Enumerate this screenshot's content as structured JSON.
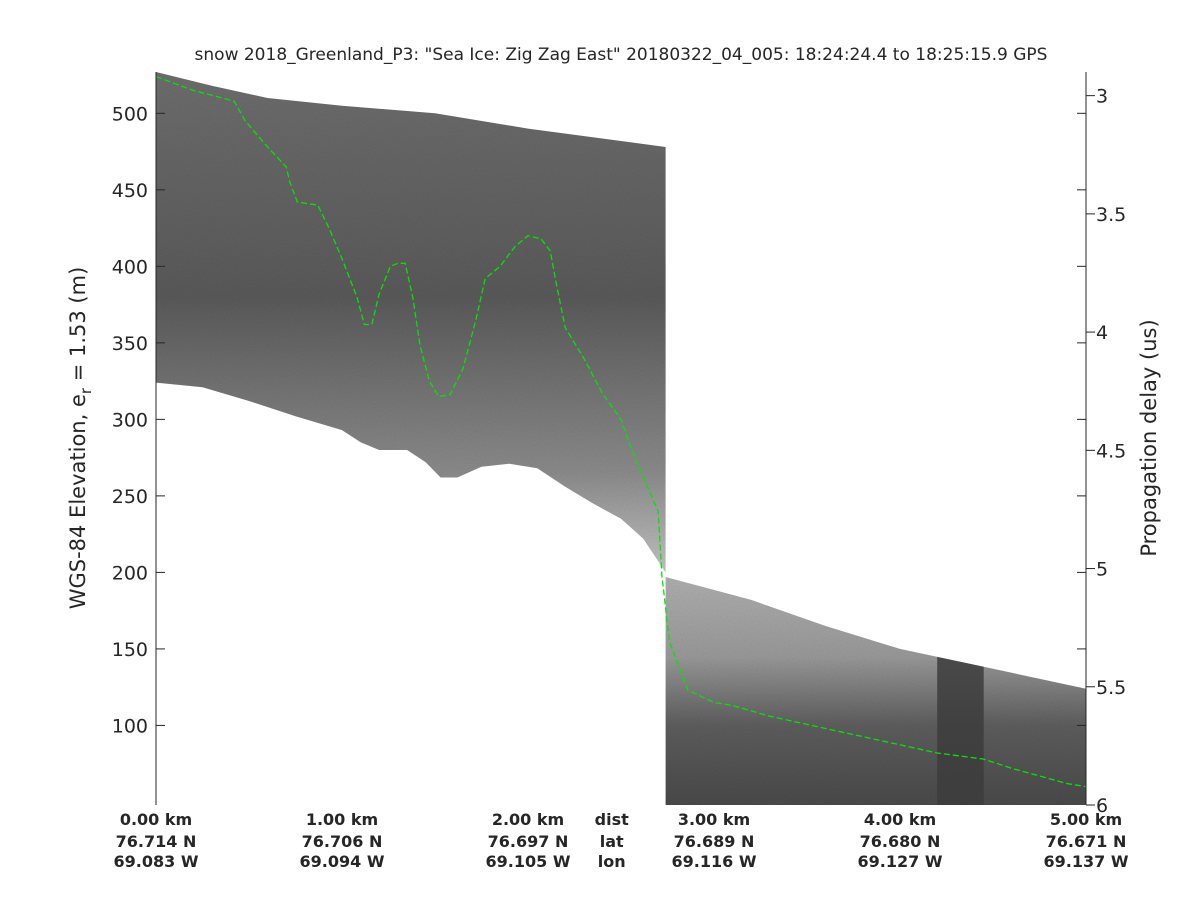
{
  "chart_data": {
    "type": "heatmap",
    "title": "snow 2018_Greenland_P3: \"Sea Ice: Zig Zag East\"  20180322_04_005: 18:24:24.4 to 18:25:15.9 GPS",
    "ylabel_left": "WGS-84 Elevation, e",
    "ylabel_left_subscript": "r",
    "ylabel_left_suffix": " = 1.53 (m)",
    "ylabel_right": "Propagation delay (us)",
    "ylim_left": [
      48,
      527
    ],
    "ylim_right": [
      2.9,
      6.0
    ],
    "xlim_km": [
      0,
      5.0
    ],
    "left_ticks": [
      {
        "value": 100,
        "label": "100"
      },
      {
        "value": 150,
        "label": "150"
      },
      {
        "value": 200,
        "label": "200"
      },
      {
        "value": 250,
        "label": "250"
      },
      {
        "value": 300,
        "label": "300"
      },
      {
        "value": 350,
        "label": "350"
      },
      {
        "value": 400,
        "label": "400"
      },
      {
        "value": 450,
        "label": "450"
      },
      {
        "value": 500,
        "label": "500"
      }
    ],
    "right_ticks": [
      {
        "value": 3.0,
        "label": "3"
      },
      {
        "value": 3.5,
        "label": "3.5"
      },
      {
        "value": 4.0,
        "label": "4"
      },
      {
        "value": 4.5,
        "label": "4.5"
      },
      {
        "value": 5.0,
        "label": "5"
      },
      {
        "value": 5.5,
        "label": "5.5"
      },
      {
        "value": 6.0,
        "label": "6"
      }
    ],
    "x_ticks": [
      {
        "km": 0.0,
        "dist": "0.00 km",
        "lat": "76.714 N",
        "lon": "69.083 W"
      },
      {
        "km": 1.0,
        "dist": "1.00 km",
        "lat": "76.706 N",
        "lon": "69.094 W"
      },
      {
        "km": 2.0,
        "dist": "2.00 km",
        "lat": "76.697 N",
        "lon": "69.105 W"
      },
      {
        "km": 3.0,
        "dist": "3.00 km",
        "lat": "76.689 N",
        "lon": "69.116 W"
      },
      {
        "km": 4.0,
        "dist": "4.00 km",
        "lat": "76.680 N",
        "lon": "69.127 W"
      },
      {
        "km": 5.0,
        "dist": "5.00 km",
        "lat": "76.671 N",
        "lon": "69.137 W"
      }
    ],
    "row_labels": {
      "dist": "dist",
      "lat": "lat",
      "lon": "lon"
    },
    "row_labels_at_km": 2.45,
    "surface_line": {
      "color": "#00e600",
      "style": "dashed",
      "points_km_elev": [
        [
          0.0,
          524
        ],
        [
          0.2,
          515
        ],
        [
          0.42,
          508
        ],
        [
          0.48,
          495
        ],
        [
          0.6,
          478
        ],
        [
          0.7,
          465
        ],
        [
          0.72,
          455
        ],
        [
          0.76,
          442
        ],
        [
          0.87,
          440
        ],
        [
          0.93,
          425
        ],
        [
          1.0,
          405
        ],
        [
          1.08,
          380
        ],
        [
          1.12,
          362
        ],
        [
          1.16,
          362
        ],
        [
          1.2,
          382
        ],
        [
          1.26,
          400
        ],
        [
          1.3,
          402
        ],
        [
          1.34,
          402
        ],
        [
          1.38,
          380
        ],
        [
          1.42,
          348
        ],
        [
          1.47,
          325
        ],
        [
          1.52,
          315
        ],
        [
          1.58,
          316
        ],
        [
          1.65,
          333
        ],
        [
          1.72,
          365
        ],
        [
          1.77,
          392
        ],
        [
          1.85,
          400
        ],
        [
          1.93,
          413
        ],
        [
          2.0,
          420
        ],
        [
          2.07,
          418
        ],
        [
          2.12,
          410
        ],
        [
          2.15,
          390
        ],
        [
          2.2,
          360
        ],
        [
          2.3,
          340
        ],
        [
          2.4,
          317
        ],
        [
          2.5,
          300
        ],
        [
          2.55,
          283
        ],
        [
          2.62,
          262
        ],
        [
          2.7,
          240
        ],
        [
          2.72,
          198
        ],
        [
          2.76,
          155
        ],
        [
          2.86,
          123
        ],
        [
          3.0,
          115
        ],
        [
          3.1,
          113
        ],
        [
          3.3,
          106
        ],
        [
          3.6,
          98
        ],
        [
          3.9,
          90
        ],
        [
          4.2,
          82
        ],
        [
          4.45,
          78
        ],
        [
          4.6,
          72
        ],
        [
          4.9,
          62
        ],
        [
          5.0,
          60
        ]
      ]
    },
    "radargram": {
      "colormap": "gray",
      "gap_color": "#ffffff",
      "left_segment": {
        "km_range": [
          0,
          2.74
        ],
        "top_elev": [
          [
            0,
            527
          ],
          [
            0.3,
            518
          ],
          [
            0.6,
            510
          ],
          [
            1.0,
            505
          ],
          [
            1.5,
            500
          ],
          [
            2.0,
            490
          ],
          [
            2.74,
            478
          ]
        ],
        "bottom_elev": [
          [
            0,
            324
          ],
          [
            0.25,
            321
          ],
          [
            0.5,
            312
          ],
          [
            0.75,
            302
          ],
          [
            1.0,
            293
          ],
          [
            1.1,
            285
          ],
          [
            1.2,
            280
          ],
          [
            1.35,
            280
          ],
          [
            1.45,
            272
          ],
          [
            1.53,
            262
          ],
          [
            1.62,
            262
          ],
          [
            1.75,
            269
          ],
          [
            1.9,
            271
          ],
          [
            2.05,
            268
          ],
          [
            2.2,
            256
          ],
          [
            2.35,
            245
          ],
          [
            2.5,
            235
          ],
          [
            2.62,
            222
          ],
          [
            2.74,
            200
          ]
        ]
      },
      "right_segment": {
        "km_range": [
          2.74,
          5.0
        ],
        "top_elev": [
          [
            2.74,
            197
          ],
          [
            3.2,
            182
          ],
          [
            3.6,
            165
          ],
          [
            4.0,
            150
          ],
          [
            4.5,
            137
          ],
          [
            5.0,
            124
          ]
        ],
        "bottom_elev": [
          [
            2.74,
            48
          ],
          [
            5.0,
            48
          ]
        ]
      },
      "dark_band_km": [
        4.2,
        4.45
      ]
    }
  }
}
